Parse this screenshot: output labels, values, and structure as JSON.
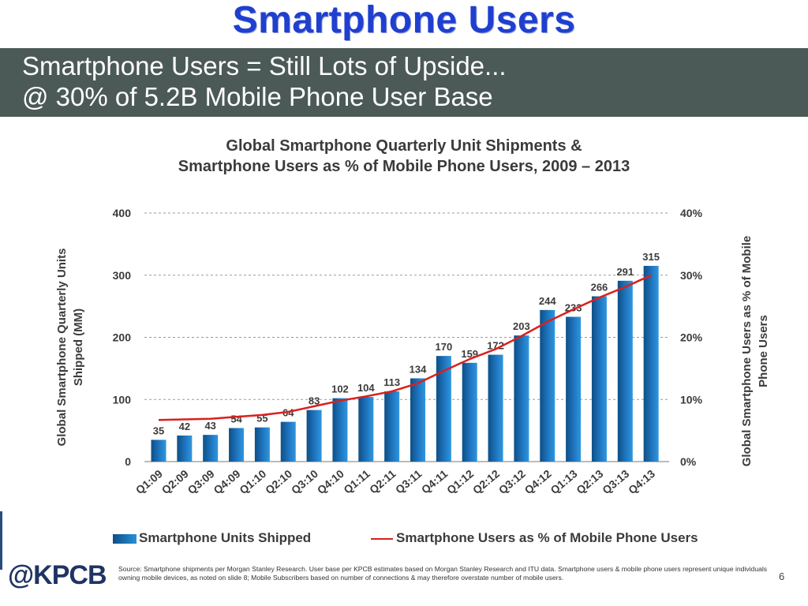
{
  "slide": {
    "title": "Smartphone Users",
    "banner_line1": "Smartphone Users = Still Lots of Upside...",
    "banner_line2": "@ 30% of 5.2B Mobile Phone User Base",
    "logo": "@KPCB",
    "source": "Source: Smartphone shipments per Morgan Stanley Research. User base per KPCB estimates based on Morgan Stanley Research and ITU data. Smartphone users & mobile phone users represent unique individuals owning mobile devices, as noted on slide 8; Mobile Subscribers based on number of connections & may therefore overstate number of mobile users.",
    "page_number": "6"
  },
  "colors": {
    "title_blue": "#1f3fcf",
    "banner_bg": "#4c5a57",
    "bar_dark": "#0e4f86",
    "bar_light": "#2a8fd6",
    "line_red": "#d9201f",
    "text_dark": "#3b3b3b"
  },
  "chart_data": {
    "type": "bar",
    "title_line1": "Global Smartphone Quarterly Unit Shipments &",
    "title_line2": "Smartphone Users as % of Mobile Phone Users, 2009 – 2013",
    "ylabel_left_line1": "Global Smartphone Quarterly Units",
    "ylabel_left_line2": "Shipped (MM)",
    "ylabel_right_line1": "Global Smartphone Users as % of Mobile",
    "ylabel_right_line2": "Phone Users",
    "ylim": [
      0,
      400
    ],
    "yticks": [
      "0",
      "100",
      "200",
      "300",
      "400"
    ],
    "y2lim": [
      0,
      40
    ],
    "y2ticks": [
      "0%",
      "10%",
      "20%",
      "30%",
      "40%"
    ],
    "grid": "horizontal dashed",
    "legend_position": "bottom",
    "categories": [
      "Q1:09",
      "Q2:09",
      "Q3:09",
      "Q4:09",
      "Q1:10",
      "Q2:10",
      "Q3:10",
      "Q4:10",
      "Q1:11",
      "Q2:11",
      "Q3:11",
      "Q4:11",
      "Q1:12",
      "Q2:12",
      "Q3:12",
      "Q4:12",
      "Q1:13",
      "Q2:13",
      "Q3:13",
      "Q4:13"
    ],
    "series": [
      {
        "name": "Smartphone Units Shipped",
        "type": "bar",
        "axis": "left",
        "values": [
          35,
          42,
          43,
          54,
          55,
          64,
          83,
          102,
          104,
          113,
          134,
          170,
          159,
          172,
          203,
          244,
          233,
          266,
          291,
          315
        ],
        "labels": [
          "35",
          "42",
          "43",
          "54",
          "55",
          "64",
          "83",
          "102",
          "104",
          "113",
          "134",
          "170",
          "159",
          "172",
          "203",
          "244",
          "233",
          "266",
          "291",
          "315"
        ]
      },
      {
        "name": "Smartphone Users as % of Mobile Phone Users",
        "type": "line",
        "axis": "right",
        "values": [
          6.7,
          6.8,
          6.9,
          7.2,
          7.5,
          8.0,
          8.9,
          9.8,
          10.5,
          11.3,
          12.6,
          14.6,
          16.5,
          18.1,
          20.2,
          22.5,
          24.5,
          26.4,
          28.1,
          30.0
        ]
      }
    ]
  }
}
